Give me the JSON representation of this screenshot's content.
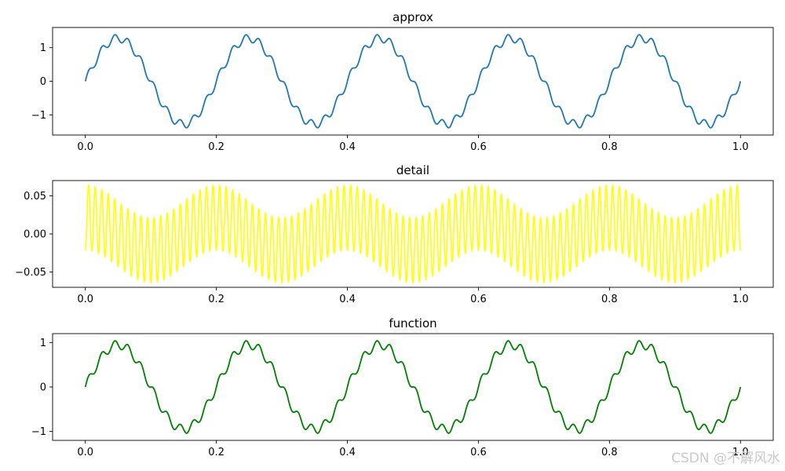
{
  "watermark": "CSDN @不解风水",
  "chart_data": [
    {
      "type": "line",
      "title": "approx",
      "color": "#1f77b4",
      "xlim": [
        -0.05,
        1.05
      ],
      "ylim": [
        -1.6,
        1.6
      ],
      "xticks": [
        0.0,
        0.2,
        0.4,
        0.6,
        0.8,
        1.0
      ],
      "xtick_labels": [
        "0.0",
        "0.2",
        "0.4",
        "0.6",
        "0.8",
        "1.0"
      ],
      "yticks": [
        1,
        0,
        -1
      ],
      "ytick_labels": [
        "1",
        "0",
        "−1"
      ],
      "series": [
        {
          "x_range": [
            0,
            1
          ],
          "points": 1000,
          "components": [
            {
              "amplitude": 1.0,
              "frequency": 5
            },
            {
              "amplitude": 0.28,
              "frequency": 5,
              "note": "shape"
            },
            {
              "amplitude": 0.12,
              "frequency": 50
            }
          ],
          "y_min": -1.5,
          "y_max": 1.5
        }
      ]
    },
    {
      "type": "line",
      "title": "detail",
      "color": "#ffff00",
      "xlim": [
        -0.05,
        1.05
      ],
      "ylim": [
        -0.07,
        0.07
      ],
      "xticks": [
        0.0,
        0.2,
        0.4,
        0.6,
        0.8,
        1.0
      ],
      "xtick_labels": [
        "0.0",
        "0.2",
        "0.4",
        "0.6",
        "0.8",
        "1.0"
      ],
      "yticks": [
        0.05,
        0.0,
        -0.05
      ],
      "ytick_labels": [
        "0.05",
        "0.00",
        "−0.05"
      ],
      "series": [
        {
          "x_range": [
            0,
            1
          ],
          "points": 1000,
          "carrier_frequency": 100,
          "envelope_frequency": 5,
          "y_min": -0.065,
          "y_max": 0.065
        }
      ]
    },
    {
      "type": "line",
      "title": "function",
      "color": "#008000",
      "xlim": [
        -0.05,
        1.05
      ],
      "ylim": [
        -1.2,
        1.2
      ],
      "xticks": [
        0.0,
        0.2,
        0.4,
        0.6,
        0.8,
        1.0
      ],
      "xtick_labels": [
        "0.0",
        "0.2",
        "0.4",
        "0.6",
        "0.8",
        "1.0"
      ],
      "yticks": [
        1,
        0,
        -1
      ],
      "ytick_labels": [
        "1",
        "0",
        "−1"
      ],
      "series": [
        {
          "x_range": [
            0,
            1
          ],
          "points": 1000,
          "components": [
            {
              "amplitude": 1.0,
              "frequency": 5
            },
            {
              "amplitude": 0.1,
              "frequency": 50
            }
          ],
          "y_min": -1.08,
          "y_max": 1.08
        }
      ]
    }
  ]
}
